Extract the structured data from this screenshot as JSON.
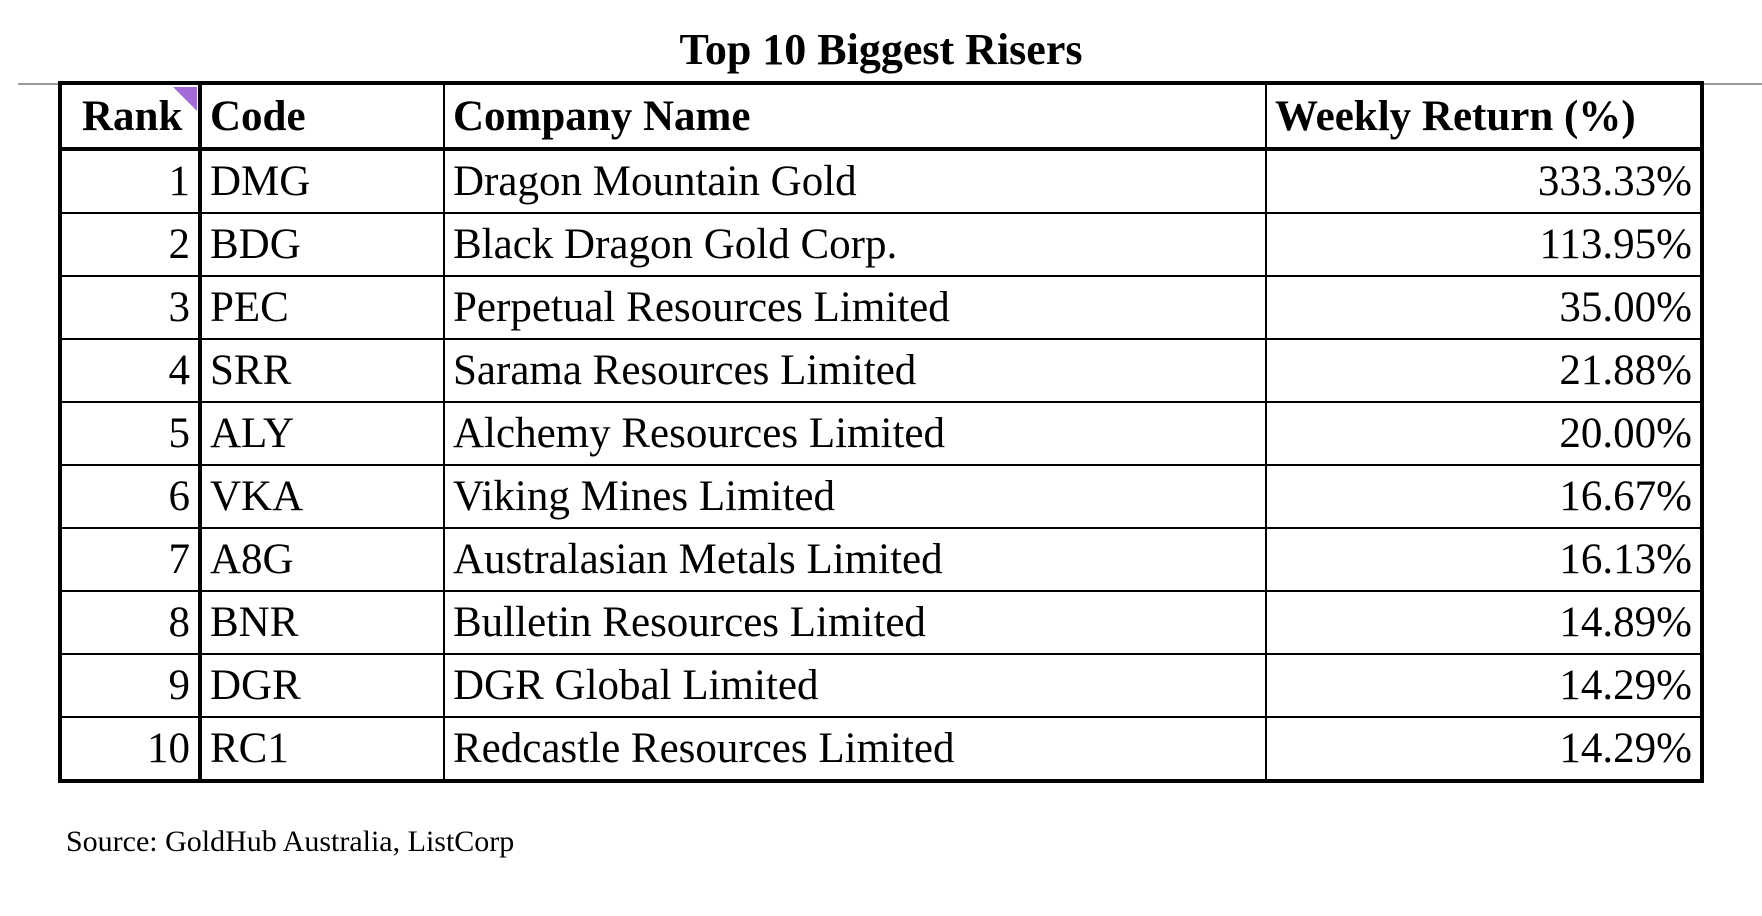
{
  "title": "Top 10 Biggest Risers",
  "table": {
    "headers": {
      "rank": "Rank",
      "code": "Code",
      "company": "Company Name",
      "return": "Weekly Return (%)"
    },
    "rows": [
      {
        "rank": "1",
        "code": "DMG",
        "company": "Dragon Mountain Gold",
        "return": "333.33%"
      },
      {
        "rank": "2",
        "code": "BDG",
        "company": "Black Dragon Gold Corp.",
        "return": "113.95%"
      },
      {
        "rank": "3",
        "code": "PEC",
        "company": "Perpetual Resources Limited",
        "return": "35.00%"
      },
      {
        "rank": "4",
        "code": "SRR",
        "company": "Sarama Resources Limited",
        "return": "21.88%"
      },
      {
        "rank": "5",
        "code": "ALY",
        "company": "Alchemy Resources Limited",
        "return": "20.00%"
      },
      {
        "rank": "6",
        "code": "VKA",
        "company": "Viking Mines Limited",
        "return": "16.67%"
      },
      {
        "rank": "7",
        "code": "A8G",
        "company": "Australasian Metals Limited",
        "return": "16.13%"
      },
      {
        "rank": "8",
        "code": "BNR",
        "company": "Bulletin Resources Limited",
        "return": "14.89%"
      },
      {
        "rank": "9",
        "code": "DGR",
        "company": "DGR Global Limited",
        "return": "14.29%"
      },
      {
        "rank": "10",
        "code": "RC1",
        "company": "Redcastle Resources Limited",
        "return": "14.29%"
      }
    ]
  },
  "source": "Source: GoldHub Australia, ListCorp",
  "colors": {
    "comment_marker": "#a46ad8",
    "rule": "#9a9a9a"
  }
}
